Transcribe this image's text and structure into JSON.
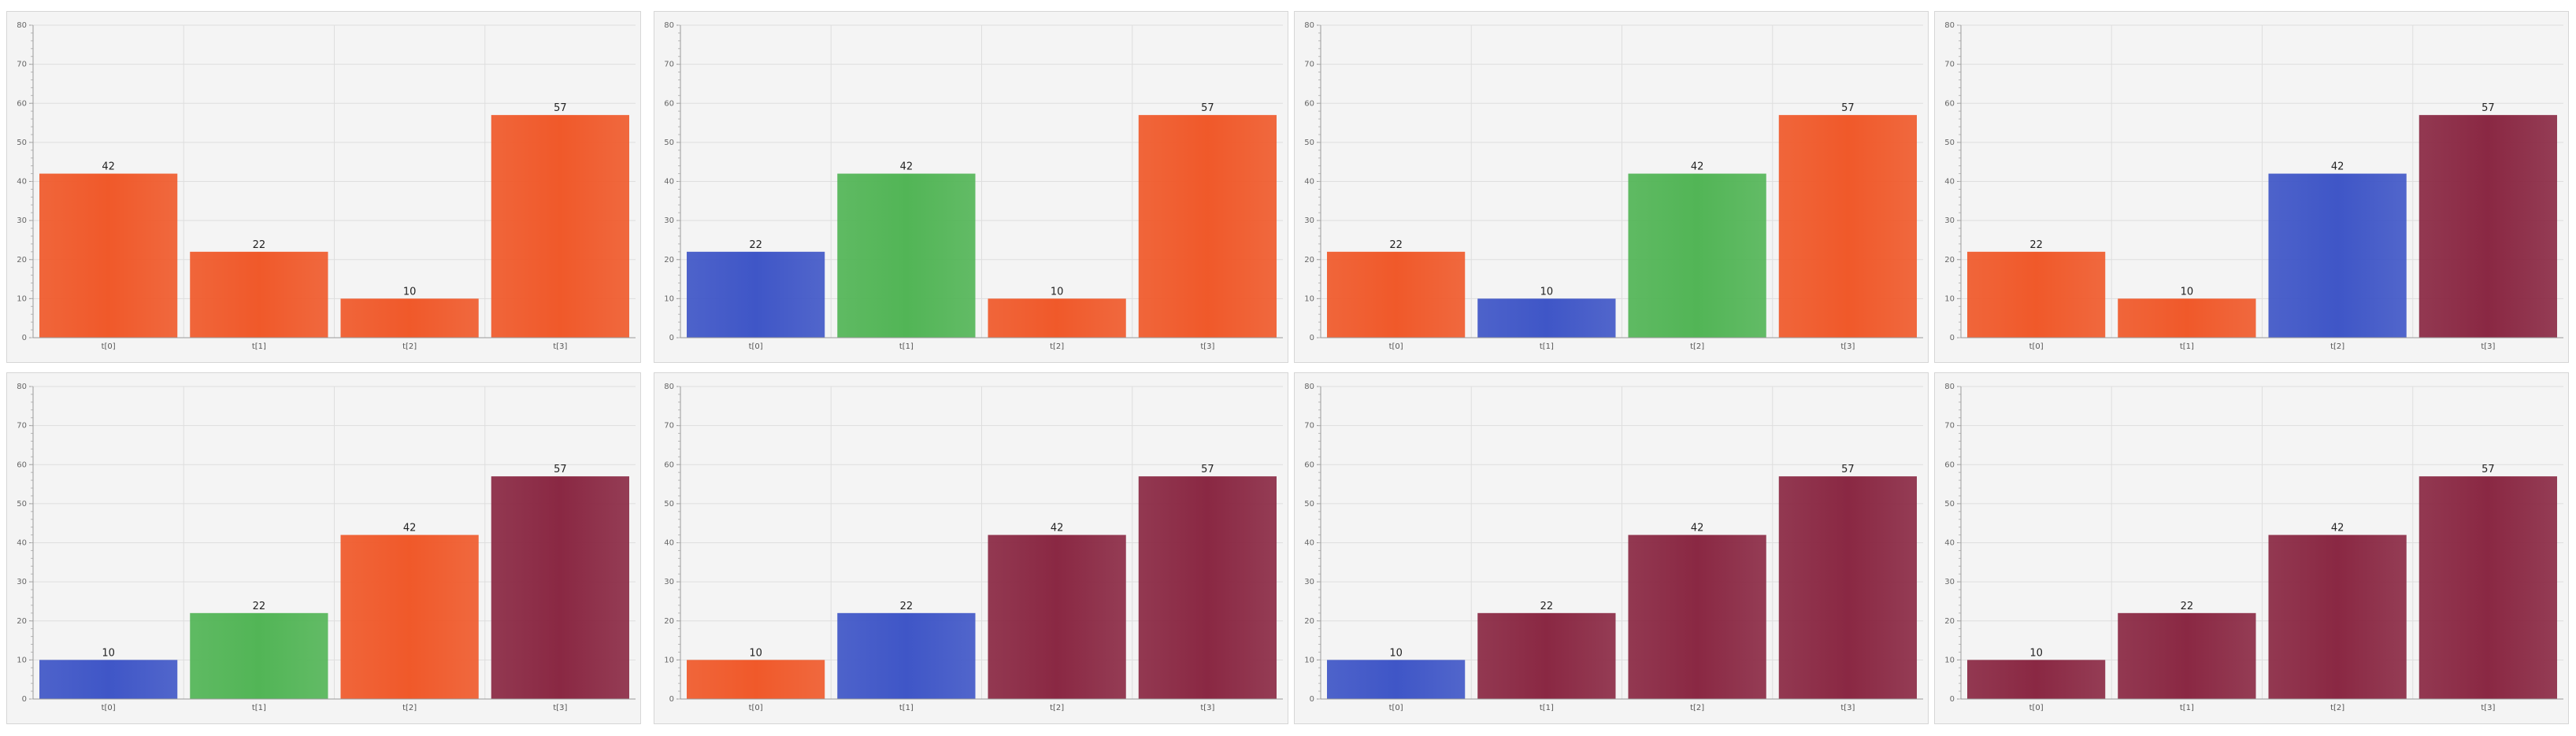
{
  "colors": {
    "orange": "#f0592a",
    "blue": "#3f56c7",
    "green": "#52b556",
    "maroon": "#8a2843",
    "grid": "#dedede",
    "axis": "#9a9a9a"
  },
  "chart_data": [
    {
      "type": "bar",
      "categories": [
        "t[0]",
        "t[1]",
        "t[2]",
        "t[3]"
      ],
      "values": [
        42,
        22,
        10,
        57
      ],
      "bar_colors": [
        "orange",
        "orange",
        "orange",
        "orange"
      ],
      "ylim": [
        0,
        80
      ],
      "yticks": [
        0,
        10,
        20,
        30,
        40,
        50,
        60,
        70,
        80
      ],
      "grid": true
    },
    {
      "type": "bar",
      "categories": [
        "t[0]",
        "t[1]",
        "t[2]",
        "t[3]"
      ],
      "values": [
        22,
        42,
        10,
        57
      ],
      "bar_colors": [
        "blue",
        "green",
        "orange",
        "orange"
      ],
      "ylim": [
        0,
        80
      ],
      "yticks": [
        0,
        10,
        20,
        30,
        40,
        50,
        60,
        70,
        80
      ],
      "grid": true
    },
    {
      "type": "bar",
      "categories": [
        "t[0]",
        "t[1]",
        "t[2]",
        "t[3]"
      ],
      "values": [
        22,
        10,
        42,
        57
      ],
      "bar_colors": [
        "orange",
        "blue",
        "green",
        "orange"
      ],
      "ylim": [
        0,
        80
      ],
      "yticks": [
        0,
        10,
        20,
        30,
        40,
        50,
        60,
        70,
        80
      ],
      "grid": true
    },
    {
      "type": "bar",
      "categories": [
        "t[0]",
        "t[1]",
        "t[2]",
        "t[3]"
      ],
      "values": [
        22,
        10,
        42,
        57
      ],
      "bar_colors": [
        "orange",
        "orange",
        "blue",
        "maroon"
      ],
      "ylim": [
        0,
        80
      ],
      "yticks": [
        0,
        10,
        20,
        30,
        40,
        50,
        60,
        70,
        80
      ],
      "grid": true
    },
    {
      "type": "bar",
      "categories": [
        "t[0]",
        "t[1]",
        "t[2]",
        "t[3]"
      ],
      "values": [
        10,
        22,
        42,
        57
      ],
      "bar_colors": [
        "blue",
        "green",
        "orange",
        "maroon"
      ],
      "ylim": [
        0,
        80
      ],
      "yticks": [
        0,
        10,
        20,
        30,
        40,
        50,
        60,
        70,
        80
      ],
      "grid": true
    },
    {
      "type": "bar",
      "categories": [
        "t[0]",
        "t[1]",
        "t[2]",
        "t[3]"
      ],
      "values": [
        10,
        22,
        42,
        57
      ],
      "bar_colors": [
        "orange",
        "blue",
        "maroon",
        "maroon"
      ],
      "ylim": [
        0,
        80
      ],
      "yticks": [
        0,
        10,
        20,
        30,
        40,
        50,
        60,
        70,
        80
      ],
      "grid": true
    },
    {
      "type": "bar",
      "categories": [
        "t[0]",
        "t[1]",
        "t[2]",
        "t[3]"
      ],
      "values": [
        10,
        22,
        42,
        57
      ],
      "bar_colors": [
        "blue",
        "maroon",
        "maroon",
        "maroon"
      ],
      "ylim": [
        0,
        80
      ],
      "yticks": [
        0,
        10,
        20,
        30,
        40,
        50,
        60,
        70,
        80
      ],
      "grid": true
    },
    {
      "type": "bar",
      "categories": [
        "t[0]",
        "t[1]",
        "t[2]",
        "t[3]"
      ],
      "values": [
        10,
        22,
        42,
        57
      ],
      "bar_colors": [
        "maroon",
        "maroon",
        "maroon",
        "maroon"
      ],
      "ylim": [
        0,
        80
      ],
      "yticks": [
        0,
        10,
        20,
        30,
        40,
        50,
        60,
        70,
        80
      ],
      "grid": true
    }
  ]
}
